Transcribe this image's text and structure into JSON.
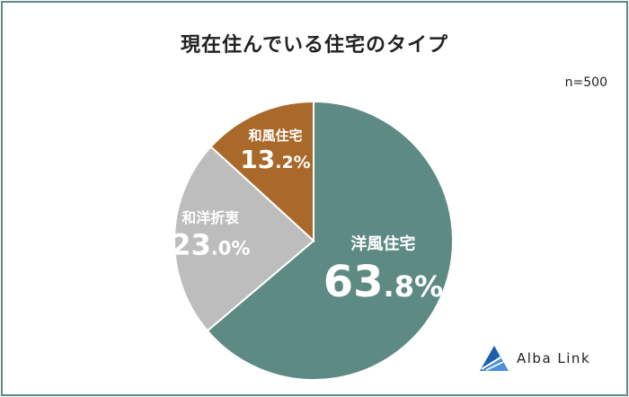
{
  "title": "現在住んでいる住宅のタイプ",
  "sample_size": "n=500",
  "logo": {
    "text": "Alba Link",
    "icon": "alba-link-triangle-logo"
  },
  "colors": {
    "border": "#5e8a84",
    "western": "#5e8a84",
    "mixed": "#bdbdbd",
    "japanese": "#a8692a"
  },
  "chart_data": {
    "type": "pie",
    "title": "現在住んでいる住宅のタイプ",
    "unit": "%",
    "start": "12 o'clock",
    "direction": "clockwise",
    "slices": [
      {
        "label": "洋風住宅",
        "value": 63.8,
        "int": "63",
        "dec": ".8%",
        "color": "#5e8a84"
      },
      {
        "label": "和洋折衷",
        "value": 23.0,
        "int": "23",
        "dec": ".0%",
        "color": "#bdbdbd"
      },
      {
        "label": "和風住宅",
        "value": 13.2,
        "int": "13",
        "dec": ".2%",
        "color": "#a8692a"
      }
    ]
  }
}
